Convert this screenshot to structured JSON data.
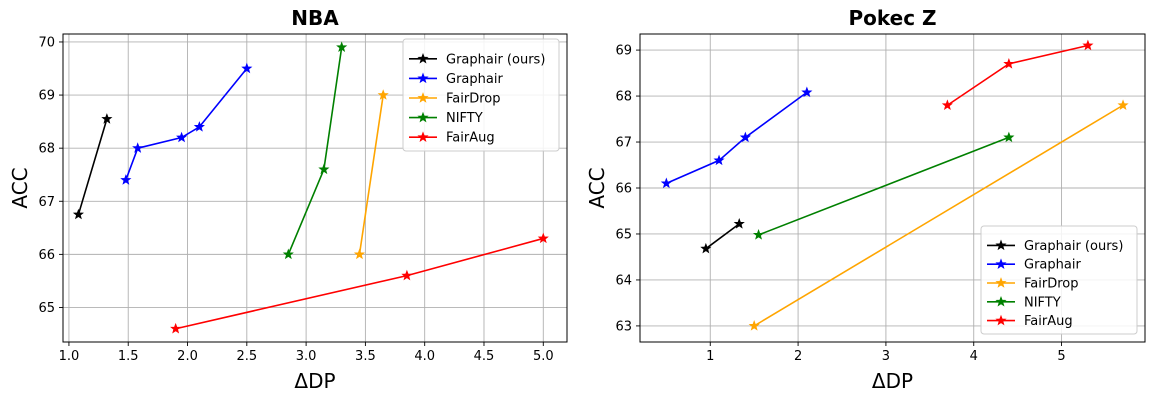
{
  "chart_data": [
    {
      "type": "line",
      "title": "NBA",
      "xlabel": "ΔDP",
      "ylabel": "ACC",
      "xlim": [
        0.95,
        5.2
      ],
      "ylim": [
        64.35,
        70.15
      ],
      "xticks": [
        "1.0",
        "1.5",
        "2.0",
        "2.5",
        "3.0",
        "3.5",
        "4.0",
        "4.5",
        "5.0"
      ],
      "yticks": [
        "65",
        "66",
        "67",
        "68",
        "69",
        "70"
      ],
      "grid": true,
      "legend": "top-right",
      "series": [
        {
          "name": "Graphair (ours)",
          "color": "#000000",
          "marker": "star",
          "points": [
            [
              1.08,
              66.75
            ],
            [
              1.32,
              68.55
            ]
          ]
        },
        {
          "name": "Graphair",
          "color": "#0000ff",
          "marker": "star",
          "points": [
            [
              1.48,
              67.4
            ],
            [
              1.58,
              68.0
            ],
            [
              1.95,
              68.2
            ],
            [
              2.1,
              68.4
            ],
            [
              2.5,
              69.5
            ]
          ]
        },
        {
          "name": "FairDrop",
          "color": "#ffa500",
          "marker": "star",
          "points": [
            [
              3.45,
              66.0
            ],
            [
              3.65,
              69.0
            ]
          ]
        },
        {
          "name": "NIFTY",
          "color": "#008000",
          "marker": "star",
          "points": [
            [
              2.85,
              66.0
            ],
            [
              3.15,
              67.6
            ],
            [
              3.3,
              69.9
            ]
          ]
        },
        {
          "name": "FairAug",
          "color": "#ff0000",
          "marker": "star",
          "points": [
            [
              1.9,
              64.6
            ],
            [
              3.85,
              65.6
            ],
            [
              5.0,
              66.3
            ]
          ]
        }
      ]
    },
    {
      "type": "line",
      "title": "Pokec Z",
      "xlabel": "ΔDP",
      "ylabel": "ACC",
      "xlim": [
        0.2,
        5.95
      ],
      "ylim": [
        62.65,
        69.35
      ],
      "xticks": [
        "1",
        "2",
        "3",
        "4",
        "5"
      ],
      "yticks": [
        "63",
        "64",
        "65",
        "66",
        "67",
        "68",
        "69"
      ],
      "grid": true,
      "legend": "bottom-right",
      "series": [
        {
          "name": "Graphair (ours)",
          "color": "#000000",
          "marker": "star",
          "points": [
            [
              0.95,
              64.68
            ],
            [
              1.33,
              65.22
            ]
          ]
        },
        {
          "name": "Graphair",
          "color": "#0000ff",
          "marker": "star",
          "points": [
            [
              0.5,
              66.1
            ],
            [
              1.1,
              66.6
            ],
            [
              1.4,
              67.1
            ],
            [
              2.1,
              68.08
            ]
          ]
        },
        {
          "name": "FairDrop",
          "color": "#ffa500",
          "marker": "star",
          "points": [
            [
              1.5,
              63.0
            ],
            [
              5.7,
              67.8
            ]
          ]
        },
        {
          "name": "NIFTY",
          "color": "#008000",
          "marker": "star",
          "points": [
            [
              1.55,
              64.98
            ],
            [
              4.4,
              67.1
            ]
          ]
        },
        {
          "name": "FairAug",
          "color": "#ff0000",
          "marker": "star",
          "points": [
            [
              3.7,
              67.8
            ],
            [
              4.4,
              68.7
            ],
            [
              5.3,
              69.1
            ]
          ]
        }
      ]
    }
  ]
}
